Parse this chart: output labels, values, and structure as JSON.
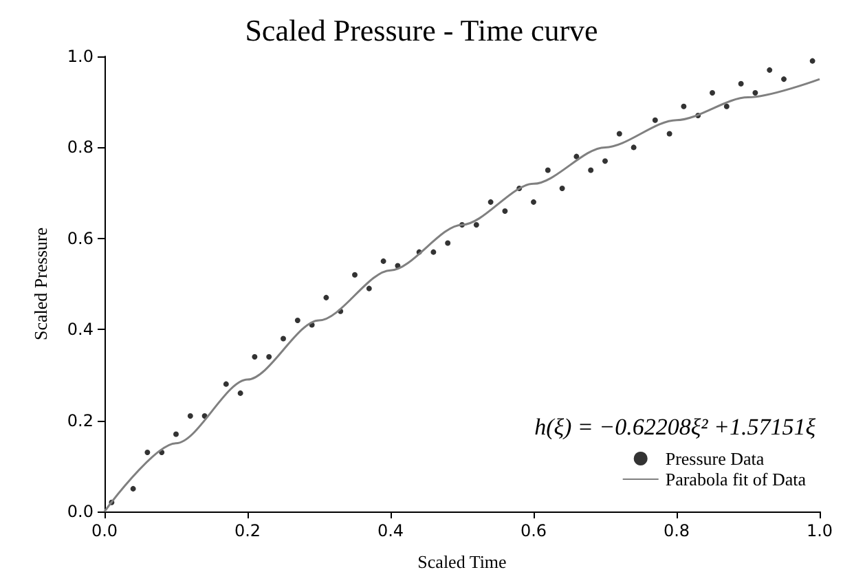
{
  "chart_data": {
    "type": "scatter",
    "title": "Scaled Pressure - Time curve",
    "xlabel": "Scaled Time",
    "ylabel": "Scaled Pressure",
    "annotations": [
      "h(ξ) = −0.62208ξ² +1.57151ξ"
    ],
    "xlim": [
      0,
      1
    ],
    "xticks": [
      {
        "value": 0,
        "label": "0.0"
      },
      0.2,
      0.4,
      0.6,
      0.8,
      {
        "value": 1,
        "label": "1.0"
      }
    ],
    "ylim": [
      0,
      1
    ],
    "yticks": [
      {
        "value": 0,
        "label": "0.0"
      },
      0.2,
      0.4,
      0.6,
      0.8,
      {
        "value": 1,
        "label": "1.0"
      }
    ],
    "grid": false,
    "legend": "bottom right",
    "series": [
      {
        "name": "Pressure Data",
        "marker": "circle",
        "color": "#000000",
        "x": [
          0.01,
          0.04,
          0.06,
          0.08,
          0.1,
          0.12,
          0.14,
          0.17,
          0.19,
          0.21,
          0.23,
          0.25,
          0.27,
          0.29,
          0.31,
          0.33,
          0.35,
          0.37,
          0.39,
          0.41,
          0.44,
          0.46,
          0.48,
          0.5,
          0.52,
          0.54,
          0.56,
          0.58,
          0.6,
          0.62,
          0.64,
          0.66,
          0.68,
          0.7,
          0.72,
          0.74,
          0.77,
          0.79,
          0.81,
          0.83,
          0.85,
          0.87,
          0.89,
          0.91,
          0.93,
          0.95,
          0.99
        ],
        "values": [
          0.02,
          0.05,
          0.13,
          0.13,
          0.17,
          0.21,
          0.21,
          0.28,
          0.26,
          0.34,
          0.34,
          0.38,
          0.42,
          0.41,
          0.47,
          0.44,
          0.52,
          0.49,
          0.55,
          0.54,
          0.57,
          0.57,
          0.59,
          0.63,
          0.63,
          0.68,
          0.66,
          0.71,
          0.68,
          0.75,
          0.71,
          0.78,
          0.75,
          0.77,
          0.83,
          0.8,
          0.86,
          0.83,
          0.89,
          0.87,
          0.92,
          0.89,
          0.94,
          0.92,
          0.97,
          0.95,
          0.99
        ]
      },
      {
        "name": "Parabola fit of Data",
        "type": "line",
        "marker": "none",
        "line_style": "solid",
        "color": "#808080",
        "x": [
          0,
          0.1,
          0.2,
          0.3,
          0.4,
          0.5,
          0.6,
          0.7,
          0.8,
          0.9,
          1
        ],
        "values": [
          0,
          0.15,
          0.29,
          0.42,
          0.53,
          0.63,
          0.72,
          0.8,
          0.86,
          0.91,
          0.95
        ]
      }
    ]
  }
}
